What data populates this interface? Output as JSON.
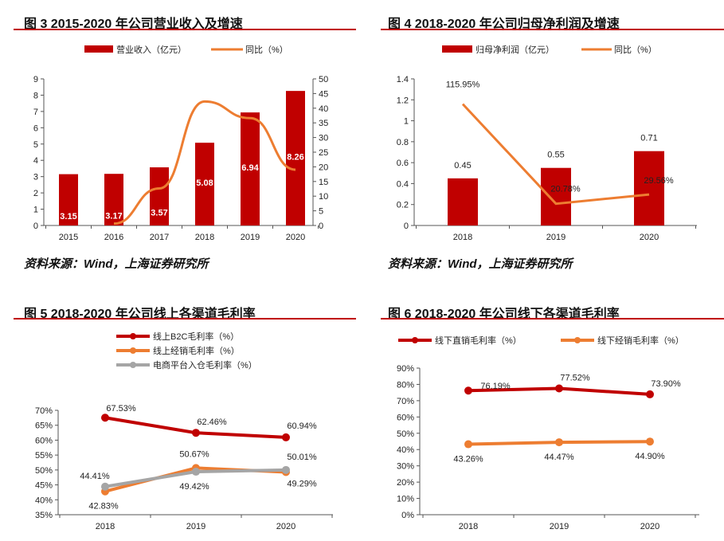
{
  "colors": {
    "bar": "#c00000",
    "orange": "#ed7d31",
    "red": "#c00000",
    "gray": "#a5a5a5"
  },
  "chart_data": [
    {
      "id": "c1",
      "title": "图 3 2015-2020 年公司营业收入及增速",
      "type": "bar+line",
      "source": "资料来源：Wind，上海证券研究所",
      "categories": [
        "2015",
        "2016",
        "2017",
        "2018",
        "2019",
        "2020"
      ],
      "series": [
        {
          "name": "营业收入（亿元）",
          "type": "bar",
          "axis": "left",
          "values": [
            3.15,
            3.17,
            3.57,
            5.08,
            6.94,
            8.26
          ],
          "labels": [
            "3.15",
            "3.17",
            "3.57",
            "5.08",
            "6.94",
            "8.26"
          ]
        },
        {
          "name": "同比（%）",
          "type": "line",
          "axis": "right",
          "values": [
            null,
            0.63,
            12.62,
            42.3,
            36.61,
            19.02
          ]
        }
      ],
      "ylim": [
        0,
        9
      ],
      "yticks": [
        "0",
        "1",
        "2",
        "3",
        "4",
        "5",
        "6",
        "7",
        "8",
        "9"
      ],
      "y2lim": [
        0,
        50
      ],
      "y2ticks": [
        "0",
        "5",
        "10",
        "15",
        "20",
        "25",
        "30",
        "35",
        "40",
        "45",
        "50"
      ]
    },
    {
      "id": "c2",
      "title": "图 4 2018-2020 年公司归母净利润及增速",
      "type": "bar+line",
      "source": "资料来源：Wind，上海证券研究所",
      "categories": [
        "2018",
        "2019",
        "2020"
      ],
      "series": [
        {
          "name": "归母净利润（亿元）",
          "type": "bar",
          "values": [
            0.45,
            0.55,
            0.71
          ],
          "labels": [
            "0.45",
            "0.55",
            "0.71"
          ]
        },
        {
          "name": "同比（%）",
          "type": "line",
          "values": [
            115.95,
            20.78,
            29.56
          ],
          "labels": [
            "115.95%",
            "20.78%",
            "29.56%"
          ]
        }
      ],
      "ylim": [
        0,
        1.4
      ],
      "yticks": [
        "0",
        "0.2",
        "0.4",
        "0.6",
        "0.8",
        "1",
        "1.2",
        "1.4"
      ]
    },
    {
      "id": "c3",
      "title": "图 5 2018-2020 年公司线上各渠道毛利率",
      "type": "line",
      "categories": [
        "2018",
        "2019",
        "2020"
      ],
      "series": [
        {
          "name": "线上B2C毛利率（%）",
          "values": [
            67.53,
            62.46,
            60.94
          ],
          "labels": [
            "67.53%",
            "62.46%",
            "60.94%"
          ]
        },
        {
          "name": "线上经销毛利率（%）",
          "values": [
            42.83,
            50.67,
            49.29
          ],
          "labels": [
            "42.83%",
            "50.67%",
            "49.29%"
          ]
        },
        {
          "name": "电商平台入仓毛利率（%）",
          "values": [
            44.41,
            49.42,
            50.01
          ],
          "labels": [
            "44.41%",
            "49.42%",
            "50.01%"
          ]
        }
      ],
      "ylim": [
        35,
        70
      ],
      "yticks": [
        "35%",
        "40%",
        "45%",
        "50%",
        "55%",
        "60%",
        "65%",
        "70%"
      ]
    },
    {
      "id": "c4",
      "title": "图 6 2018-2020 年公司线下各渠道毛利率",
      "type": "line",
      "categories": [
        "2018",
        "2019",
        "2020"
      ],
      "series": [
        {
          "name": "线下直销毛利率（%）",
          "values": [
            76.19,
            77.52,
            73.9
          ],
          "labels": [
            "76.19%",
            "77.52%",
            "73.90%"
          ]
        },
        {
          "name": "线下经销毛利率（%）",
          "values": [
            43.26,
            44.47,
            44.9
          ],
          "labels": [
            "43.26%",
            "44.47%",
            "44.90%"
          ]
        }
      ],
      "ylim": [
        0,
        90
      ],
      "yticks": [
        "0%",
        "10%",
        "20%",
        "30%",
        "40%",
        "50%",
        "60%",
        "70%",
        "80%",
        "90%"
      ]
    }
  ]
}
